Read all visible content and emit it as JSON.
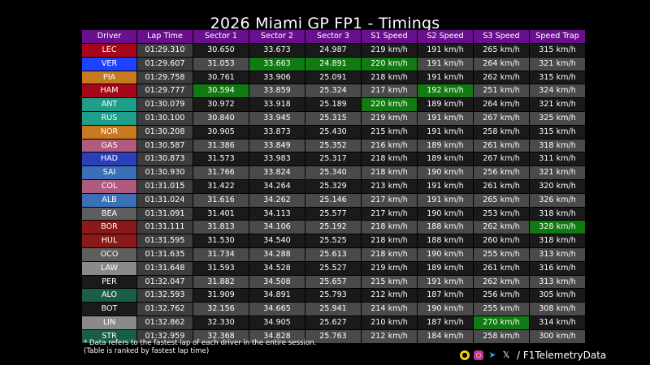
{
  "title": "2026 Miami GP FP1 - Timings",
  "watermark": "F1TelemetryData",
  "columns": [
    "Driver",
    "Lap Time",
    "Sector 1",
    "Sector 2",
    "Sector 3",
    "S1 Speed",
    "S2 Speed",
    "S3 Speed",
    "Speed Trap"
  ],
  "footnote_1": "* Data refers to the fastest lap of each driver in the entire session.",
  "footnote_2": "(Table is ranked by fastest lap time)",
  "social_handle": "/ F1TelemetryData",
  "colors": {
    "header": "#6a0f8e",
    "best": "#127a12",
    "background": "#000000"
  },
  "icons": [
    "snapchat-icon",
    "instagram-icon",
    "telegram-icon",
    "x-icon"
  ],
  "chart_data": {
    "type": "table",
    "title": "2026 Miami GP FP1 - Timings",
    "highlighted_best": {
      "Sector 1": "HAM",
      "Sector 2": "VER",
      "Sector 3": "VER",
      "S1 Speed": [
        "VER",
        "ANT"
      ],
      "S2 Speed": "HAM",
      "S3 Speed": "LIN",
      "Speed Trap": "BOR"
    },
    "rows": [
      {
        "driver": "LEC",
        "color": "#a6051a",
        "lap": "01:29.310",
        "s1": "30.650",
        "s2": "33.673",
        "s3": "24.987",
        "sp1": "219 km/h",
        "sp2": "191 km/h",
        "sp3": "265 km/h",
        "trap": "315 km/h",
        "best": []
      },
      {
        "driver": "VER",
        "color": "#1e41ff",
        "lap": "01:29.607",
        "s1": "31.053",
        "s2": "33.663",
        "s3": "24.891",
        "sp1": "220 km/h",
        "sp2": "191 km/h",
        "sp3": "264 km/h",
        "trap": "321 km/h",
        "best": [
          "s2",
          "s3",
          "sp1"
        ]
      },
      {
        "driver": "PIA",
        "color": "#c8781e",
        "lap": "01:29.758",
        "s1": "30.761",
        "s2": "33.906",
        "s3": "25.091",
        "sp1": "218 km/h",
        "sp2": "191 km/h",
        "sp3": "262 km/h",
        "trap": "315 km/h",
        "best": []
      },
      {
        "driver": "HAM",
        "color": "#a6051a",
        "lap": "01:29.777",
        "s1": "30.594",
        "s2": "33.859",
        "s3": "25.324",
        "sp1": "217 km/h",
        "sp2": "192 km/h",
        "sp3": "251 km/h",
        "trap": "324 km/h",
        "best": [
          "s1",
          "sp2"
        ]
      },
      {
        "driver": "ANT",
        "color": "#1f9e8a",
        "lap": "01:30.079",
        "s1": "30.972",
        "s2": "33.918",
        "s3": "25.189",
        "sp1": "220 km/h",
        "sp2": "189 km/h",
        "sp3": "264 km/h",
        "trap": "321 km/h",
        "best": [
          "sp1"
        ]
      },
      {
        "driver": "RUS",
        "color": "#1f9e8a",
        "lap": "01:30.100",
        "s1": "30.840",
        "s2": "33.945",
        "s3": "25.315",
        "sp1": "219 km/h",
        "sp2": "191 km/h",
        "sp3": "267 km/h",
        "trap": "325 km/h",
        "best": []
      },
      {
        "driver": "NOR",
        "color": "#c8781e",
        "lap": "01:30.208",
        "s1": "30.905",
        "s2": "33.873",
        "s3": "25.430",
        "sp1": "215 km/h",
        "sp2": "191 km/h",
        "sp3": "258 km/h",
        "trap": "315 km/h",
        "best": []
      },
      {
        "driver": "GAS",
        "color": "#b05a7e",
        "lap": "01:30.587",
        "s1": "31.386",
        "s2": "33.849",
        "s3": "25.352",
        "sp1": "216 km/h",
        "sp2": "189 km/h",
        "sp3": "261 km/h",
        "trap": "318 km/h",
        "best": []
      },
      {
        "driver": "HAD",
        "color": "#2b3fb8",
        "lap": "01:30.873",
        "s1": "31.573",
        "s2": "33.983",
        "s3": "25.317",
        "sp1": "218 km/h",
        "sp2": "189 km/h",
        "sp3": "267 km/h",
        "trap": "311 km/h",
        "best": []
      },
      {
        "driver": "SAI",
        "color": "#3b6fb8",
        "lap": "01:30.930",
        "s1": "31.766",
        "s2": "33.824",
        "s3": "25.340",
        "sp1": "218 km/h",
        "sp2": "190 km/h",
        "sp3": "256 km/h",
        "trap": "321 km/h",
        "best": []
      },
      {
        "driver": "COL",
        "color": "#b05a7e",
        "lap": "01:31.015",
        "s1": "31.422",
        "s2": "34.264",
        "s3": "25.329",
        "sp1": "213 km/h",
        "sp2": "191 km/h",
        "sp3": "261 km/h",
        "trap": "320 km/h",
        "best": []
      },
      {
        "driver": "ALB",
        "color": "#3b6fb8",
        "lap": "01:31.024",
        "s1": "31.616",
        "s2": "34.262",
        "s3": "25.146",
        "sp1": "217 km/h",
        "sp2": "191 km/h",
        "sp3": "265 km/h",
        "trap": "326 km/h",
        "best": []
      },
      {
        "driver": "BEA",
        "color": "#5e5e5e",
        "lap": "01:31.091",
        "s1": "31.401",
        "s2": "34.113",
        "s3": "25.577",
        "sp1": "217 km/h",
        "sp2": "190 km/h",
        "sp3": "253 km/h",
        "trap": "318 km/h",
        "best": []
      },
      {
        "driver": "BOR",
        "color": "#8a1a1a",
        "lap": "01:31.111",
        "s1": "31.813",
        "s2": "34.106",
        "s3": "25.192",
        "sp1": "218 km/h",
        "sp2": "188 km/h",
        "sp3": "262 km/h",
        "trap": "328 km/h",
        "best": [
          "trap"
        ]
      },
      {
        "driver": "HUL",
        "color": "#8a1a1a",
        "lap": "01:31.595",
        "s1": "31.530",
        "s2": "34.540",
        "s3": "25.525",
        "sp1": "218 km/h",
        "sp2": "188 km/h",
        "sp3": "260 km/h",
        "trap": "318 km/h",
        "best": []
      },
      {
        "driver": "OCO",
        "color": "#5e5e5e",
        "lap": "01:31.635",
        "s1": "31.734",
        "s2": "34.288",
        "s3": "25.613",
        "sp1": "218 km/h",
        "sp2": "190 km/h",
        "sp3": "255 km/h",
        "trap": "313 km/h",
        "best": []
      },
      {
        "driver": "LAW",
        "color": "#8a8a8a",
        "lap": "01:31.648",
        "s1": "31.593",
        "s2": "34.528",
        "s3": "25.527",
        "sp1": "219 km/h",
        "sp2": "189 km/h",
        "sp3": "261 km/h",
        "trap": "316 km/h",
        "best": []
      },
      {
        "driver": "PER",
        "color": "#1a1a1a",
        "lap": "01:32.047",
        "s1": "31.882",
        "s2": "34.508",
        "s3": "25.657",
        "sp1": "215 km/h",
        "sp2": "191 km/h",
        "sp3": "262 km/h",
        "trap": "313 km/h",
        "best": []
      },
      {
        "driver": "ALO",
        "color": "#1a5e48",
        "lap": "01:32.593",
        "s1": "31.909",
        "s2": "34.891",
        "s3": "25.793",
        "sp1": "212 km/h",
        "sp2": "187 km/h",
        "sp3": "256 km/h",
        "trap": "305 km/h",
        "best": []
      },
      {
        "driver": "BOT",
        "color": "#1a1a1a",
        "lap": "01:32.762",
        "s1": "32.156",
        "s2": "34.665",
        "s3": "25.941",
        "sp1": "214 km/h",
        "sp2": "190 km/h",
        "sp3": "255 km/h",
        "trap": "308 km/h",
        "best": []
      },
      {
        "driver": "LIN",
        "color": "#8a8a8a",
        "lap": "01:32.862",
        "s1": "32.330",
        "s2": "34.905",
        "s3": "25.627",
        "sp1": "210 km/h",
        "sp2": "187 km/h",
        "sp3": "270 km/h",
        "trap": "314 km/h",
        "best": [
          "sp3"
        ]
      },
      {
        "driver": "STR",
        "color": "#1a5e48",
        "lap": "01:32.959",
        "s1": "32.368",
        "s2": "34.828",
        "s3": "25.763",
        "sp1": "212 km/h",
        "sp2": "184 km/h",
        "sp3": "258 km/h",
        "trap": "300 km/h",
        "best": []
      }
    ]
  }
}
